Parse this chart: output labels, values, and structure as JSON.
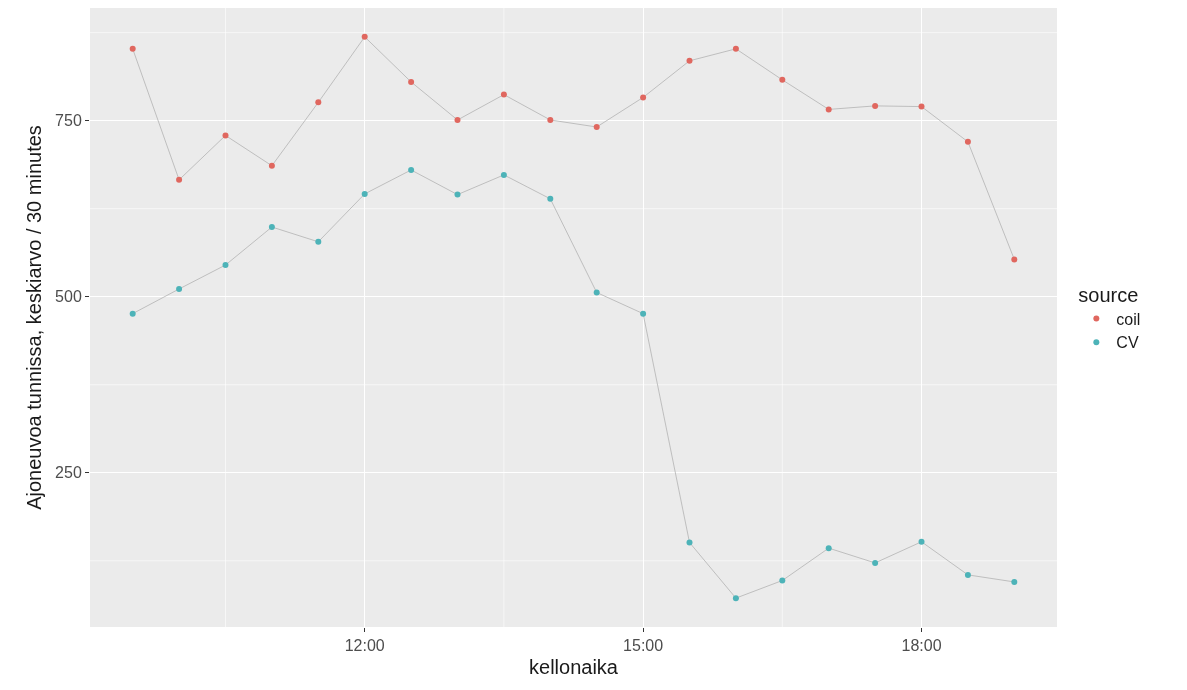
{
  "chart_data": {
    "type": "line",
    "xlabel": "kellonaika",
    "ylabel": "Ajoneuvoa tunnissa, keskiarvo / 30 minutes",
    "legend_title": "source",
    "x": [
      9.5,
      10,
      10.5,
      11,
      11.5,
      12,
      12.5,
      13,
      13.5,
      14,
      14.5,
      15,
      15.5,
      16,
      16.5,
      17,
      17.5,
      18,
      18.5,
      19
    ],
    "series": [
      {
        "name": "coil",
        "color": "#e0675f",
        "values": [
          852,
          666,
          729,
          686,
          776,
          869,
          805,
          751,
          787,
          751,
          741,
          783,
          835,
          852,
          808,
          766,
          771,
          770,
          720,
          553
        ]
      },
      {
        "name": "CV",
        "color": "#4db3b8",
        "values": [
          476,
          511,
          545,
          599,
          578,
          646,
          680,
          645,
          673,
          639,
          506,
          476,
          151,
          72,
          97,
          143,
          122,
          152,
          105,
          95
        ]
      }
    ],
    "xlim": [
      9.04,
      19.46
    ],
    "xticks": [
      {
        "value": 12,
        "label": "12:00"
      },
      {
        "value": 15,
        "label": "15:00"
      },
      {
        "value": 18,
        "label": "18:00"
      }
    ],
    "ylim": [
      31,
      910
    ],
    "yticks": [
      250,
      500,
      750
    ],
    "grid": true,
    "legend": "right",
    "marker": "circle",
    "line_style": "solid"
  }
}
